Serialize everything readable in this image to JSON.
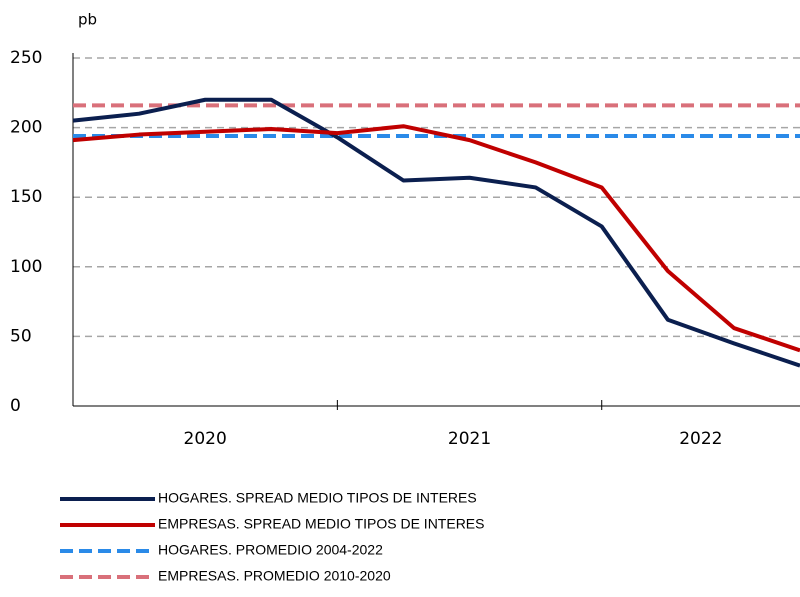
{
  "chart_data": {
    "type": "line",
    "y_unit": "pb",
    "year_groups": [
      {
        "label": "2020",
        "points": 4
      },
      {
        "label": "2021",
        "points": 4
      },
      {
        "label": "2022",
        "points": 4
      }
    ],
    "series": [
      {
        "name": "HOGARES. SPREAD MEDIO TIPOS DE INTERES",
        "color": "#0b1f4f",
        "values": [
          205,
          210,
          220,
          220,
          193,
          162,
          164,
          157,
          129,
          62,
          45,
          29
        ]
      },
      {
        "name": "EMPRESAS. SPREAD MEDIO TIPOS DE INTERES",
        "color": "#c00000",
        "values": [
          191,
          195,
          197,
          199,
          196,
          201,
          191,
          175,
          157,
          97,
          56,
          40
        ]
      }
    ],
    "reference_lines": [
      {
        "name": "HOGARES. PROMEDIO 2004-2022",
        "color": "#2a8ae8",
        "value": 194
      },
      {
        "name": "EMPRESAS. PROMEDIO 2010-2020",
        "color": "#d9707a",
        "value": 216
      }
    ],
    "ylim": [
      0,
      250
    ],
    "yticks": [
      0,
      50,
      100,
      150,
      200,
      250
    ],
    "grid": true
  }
}
